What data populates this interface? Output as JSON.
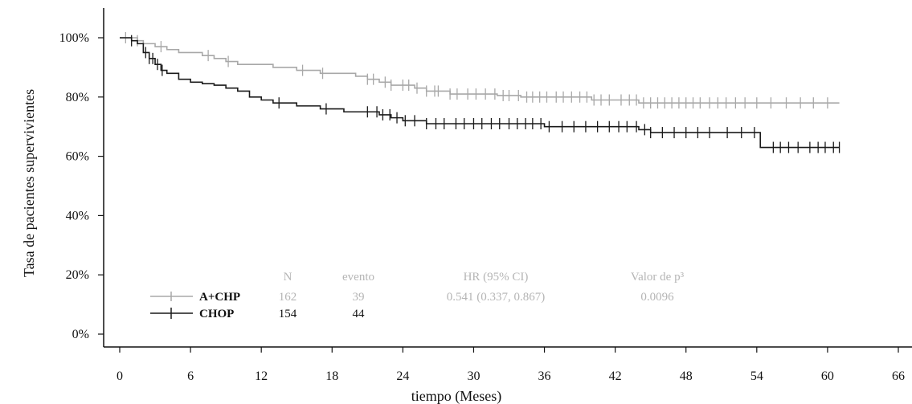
{
  "chart_data": {
    "type": "line",
    "xlabel": "tiempo (Meses)",
    "ylabel": "Tasa de pacientes supervivientes",
    "xlim": [
      0,
      66
    ],
    "ylim": [
      0,
      100
    ],
    "x_ticks": [
      0,
      6,
      12,
      18,
      24,
      30,
      36,
      42,
      48,
      54,
      60,
      66
    ],
    "y_ticks": [
      "0%",
      "20%",
      "40%",
      "60%",
      "80%",
      "100%"
    ],
    "y_tick_values": [
      0,
      20,
      40,
      60,
      80,
      100
    ],
    "series": [
      {
        "name": "A+CHP",
        "color": "#a8a8a8",
        "points": [
          [
            0,
            100
          ],
          [
            1,
            100
          ],
          [
            1.5,
            99
          ],
          [
            2,
            98
          ],
          [
            3,
            97
          ],
          [
            4,
            96
          ],
          [
            5,
            95
          ],
          [
            6,
            95
          ],
          [
            7,
            94
          ],
          [
            8,
            93
          ],
          [
            9,
            92
          ],
          [
            10,
            91
          ],
          [
            11,
            91
          ],
          [
            12,
            91
          ],
          [
            13,
            90
          ],
          [
            14,
            90
          ],
          [
            15,
            89
          ],
          [
            16,
            89
          ],
          [
            17,
            88
          ],
          [
            18,
            88
          ],
          [
            19,
            88
          ],
          [
            20,
            87
          ],
          [
            21,
            86
          ],
          [
            22,
            85
          ],
          [
            23,
            84
          ],
          [
            24,
            84
          ],
          [
            25,
            83
          ],
          [
            26,
            82
          ],
          [
            27,
            82
          ],
          [
            28,
            81
          ],
          [
            30,
            81
          ],
          [
            32,
            80.5
          ],
          [
            34,
            80
          ],
          [
            36,
            80
          ],
          [
            38,
            80
          ],
          [
            40,
            79
          ],
          [
            42,
            79
          ],
          [
            44,
            78
          ],
          [
            46,
            78
          ],
          [
            48,
            78
          ],
          [
            50,
            78
          ],
          [
            52,
            78
          ],
          [
            54,
            78
          ],
          [
            56,
            78
          ],
          [
            58,
            78
          ],
          [
            60,
            78
          ],
          [
            61,
            78
          ]
        ],
        "censor_x": [
          0.5,
          1.5,
          3.5,
          7.5,
          9.2,
          15.5,
          17.2,
          21,
          21.5,
          22.5,
          23,
          24,
          24.5,
          25.2,
          26,
          26.7,
          27,
          28,
          28.6,
          29.5,
          30.2,
          31,
          31.8,
          32.5,
          33,
          33.8,
          34.5,
          35,
          35.6,
          36.2,
          37,
          37.6,
          38.3,
          39,
          39.6,
          40.2,
          40.8,
          41.5,
          42.5,
          43.2,
          43.8,
          44.4,
          45,
          45.6,
          46.2,
          46.8,
          47.4,
          48,
          48.6,
          49.2,
          50,
          50.7,
          51.4,
          52.2,
          53,
          54,
          55.2,
          56.5,
          57.7,
          58.8,
          60
        ]
      },
      {
        "name": "CHOP",
        "color": "#1a1a1a",
        "points": [
          [
            0,
            100
          ],
          [
            1,
            99
          ],
          [
            1.5,
            98
          ],
          [
            2,
            95
          ],
          [
            2.5,
            93
          ],
          [
            3,
            91
          ],
          [
            3.5,
            89
          ],
          [
            4,
            88
          ],
          [
            5,
            86
          ],
          [
            6,
            85
          ],
          [
            7,
            84.5
          ],
          [
            8,
            84
          ],
          [
            9,
            83
          ],
          [
            10,
            82
          ],
          [
            11,
            80
          ],
          [
            12,
            79
          ],
          [
            13,
            78
          ],
          [
            14,
            78
          ],
          [
            15,
            77
          ],
          [
            16,
            77
          ],
          [
            17,
            76
          ],
          [
            18,
            76
          ],
          [
            19,
            75
          ],
          [
            21,
            75
          ],
          [
            22,
            74
          ],
          [
            23,
            73
          ],
          [
            24,
            72
          ],
          [
            25,
            72
          ],
          [
            26,
            71
          ],
          [
            28,
            71
          ],
          [
            30,
            71
          ],
          [
            32,
            71
          ],
          [
            34,
            71
          ],
          [
            36,
            70
          ],
          [
            38,
            70
          ],
          [
            40,
            70
          ],
          [
            42,
            70
          ],
          [
            44,
            69
          ],
          [
            45,
            68
          ],
          [
            46,
            68
          ],
          [
            48,
            68
          ],
          [
            50,
            68
          ],
          [
            52,
            68
          ],
          [
            54,
            68
          ],
          [
            54.3,
            63
          ],
          [
            56,
            63
          ],
          [
            58,
            63
          ],
          [
            60,
            63
          ],
          [
            61,
            63
          ]
        ],
        "censor_x": [
          1,
          2.2,
          2.5,
          2.8,
          3.2,
          3.6,
          13.5,
          17.5,
          21,
          21.8,
          22.3,
          22.9,
          23.5,
          24.2,
          25,
          26,
          26.8,
          27.5,
          28.5,
          29.2,
          30,
          30.7,
          31.5,
          32.2,
          33,
          33.7,
          34.4,
          35,
          35.7,
          36.4,
          37.5,
          38.5,
          39.5,
          40.5,
          41.5,
          42.3,
          43,
          43.8,
          44.5,
          45,
          46,
          47,
          48,
          49,
          50,
          51.5,
          52.7,
          53.8,
          55.4,
          56,
          56.7,
          57.5,
          58.5,
          59.2,
          59.8,
          60.5,
          61
        ]
      }
    ],
    "legend": {
      "headers": [
        "N",
        "evento",
        "HR (95% CI)",
        "Valor de p³"
      ],
      "rows": [
        {
          "name": "A+CHP",
          "n": "162",
          "events": "39",
          "hr": "0.541 (0.337, 0.867)",
          "p": "0.0096"
        },
        {
          "name": "CHOP",
          "n": "154",
          "events": "44",
          "hr": "",
          "p": ""
        }
      ]
    }
  }
}
